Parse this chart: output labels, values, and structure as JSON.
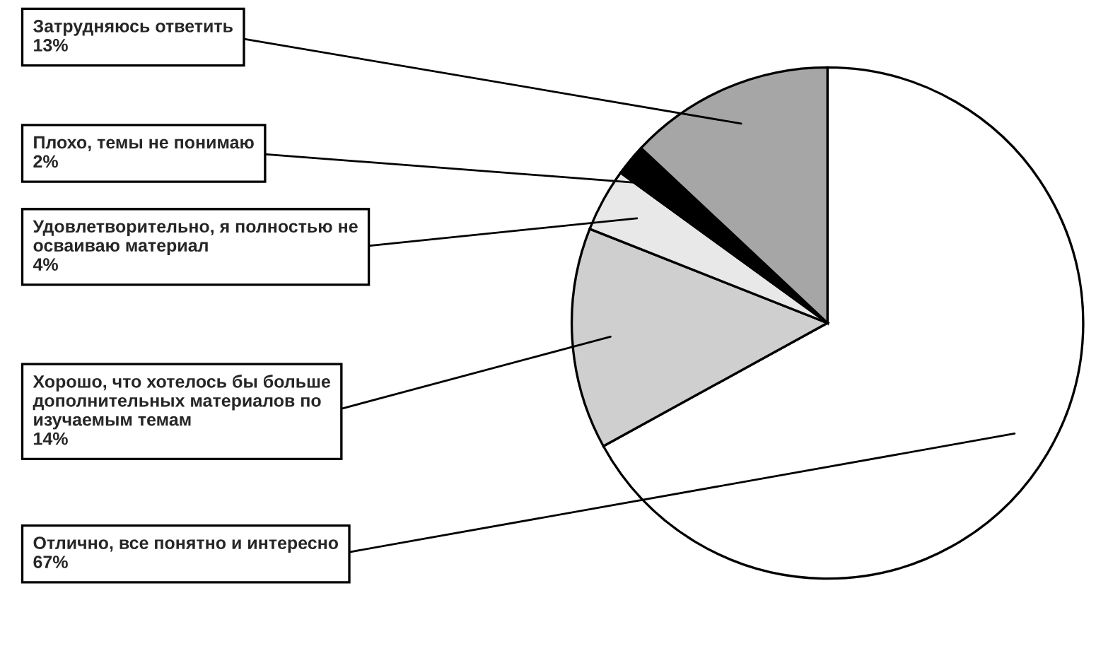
{
  "chart_data": {
    "type": "pie",
    "categories": [
      "Отлично, все понятно и интересно",
      "Хорошо, что хотелось бы больше\nдополнительных материалов по\nизучаемым темам",
      "Удовлетворительно, я полностью не\nосваиваю материал",
      "Плохо, темы не понимаю",
      "Затрудняюсь ответить"
    ],
    "values": [
      67,
      14,
      4,
      2,
      13
    ],
    "value_labels": [
      "67%",
      "14%",
      "4%",
      "2%",
      "13%"
    ],
    "colors": [
      "#ffffff",
      "#cfcfcf",
      "#e8e8e8",
      "#000000",
      "#a6a6a6"
    ]
  }
}
